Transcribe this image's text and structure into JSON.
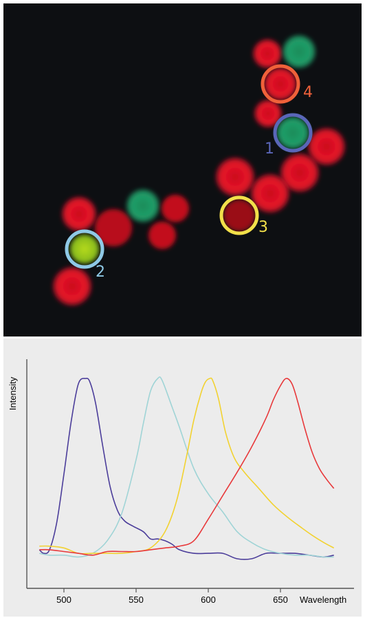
{
  "micrograph": {
    "background": "#0d0f12",
    "cell_labels": [
      "1",
      "2",
      "3",
      "4"
    ],
    "label_colors": {
      "1": "#5a66b8",
      "2": "#8fc9e6",
      "3": "#f2e04a",
      "4": "#f0613a"
    },
    "cell_colors": {
      "red": "#e8152a",
      "green": "#21a06a",
      "yellow_green": "#a8d020"
    }
  },
  "chart_data": {
    "type": "line",
    "xlabel": "Wavelength",
    "ylabel": "Intensity",
    "xlim": [
      480,
      690
    ],
    "ylim": [
      0,
      1.05
    ],
    "x_ticks": [
      "500",
      "550",
      "600",
      "650"
    ],
    "grid": false,
    "series": [
      {
        "color": "#4b3d9a",
        "x": [
          483,
          486,
          490,
          495,
          500,
          505,
          510,
          515,
          518,
          522,
          527,
          532,
          537,
          542,
          548,
          555,
          560,
          565,
          570,
          575,
          580,
          590,
          600,
          610,
          620,
          630,
          640,
          650,
          660,
          670,
          680,
          687
        ],
        "y": [
          0.05,
          0.03,
          0.05,
          0.2,
          0.47,
          0.76,
          0.97,
          1.0,
          0.98,
          0.86,
          0.62,
          0.4,
          0.27,
          0.21,
          0.18,
          0.15,
          0.11,
          0.11,
          0.1,
          0.08,
          0.05,
          0.03,
          0.03,
          0.03,
          0.0,
          0.0,
          0.03,
          0.03,
          0.03,
          0.02,
          0.01,
          0.02
        ]
      },
      {
        "color": "#9fd4d6",
        "x": [
          483,
          490,
          500,
          510,
          520,
          530,
          540,
          550,
          555,
          560,
          565,
          568,
          575,
          580,
          590,
          600,
          610,
          620,
          630,
          640,
          650,
          660,
          670,
          680,
          687
        ],
        "y": [
          0.03,
          0.02,
          0.02,
          0.01,
          0.03,
          0.1,
          0.25,
          0.55,
          0.75,
          0.93,
          1.0,
          0.99,
          0.84,
          0.73,
          0.5,
          0.36,
          0.26,
          0.15,
          0.09,
          0.05,
          0.03,
          0.02,
          0.02,
          0.01,
          0.01
        ]
      },
      {
        "color": "#f2d230",
        "x": [
          483,
          490,
          500,
          510,
          520,
          530,
          540,
          550,
          560,
          570,
          578,
          585,
          590,
          595,
          598,
          601,
          603,
          607,
          612,
          618,
          625,
          635,
          645,
          655,
          665,
          672,
          680,
          687
        ],
        "y": [
          0.07,
          0.07,
          0.06,
          0.03,
          0.03,
          0.03,
          0.03,
          0.04,
          0.06,
          0.15,
          0.32,
          0.57,
          0.77,
          0.92,
          0.98,
          1.0,
          0.99,
          0.89,
          0.7,
          0.56,
          0.48,
          0.39,
          0.3,
          0.23,
          0.17,
          0.13,
          0.09,
          0.06
        ]
      },
      {
        "color": "#e8383a",
        "x": [
          483,
          490,
          500,
          510,
          520,
          530,
          540,
          550,
          560,
          570,
          580,
          590,
          600,
          610,
          620,
          630,
          640,
          645,
          650,
          654,
          658,
          662,
          667,
          672,
          677,
          682,
          687
        ],
        "y": [
          0.05,
          0.05,
          0.04,
          0.03,
          0.02,
          0.04,
          0.04,
          0.04,
          0.05,
          0.06,
          0.07,
          0.1,
          0.22,
          0.35,
          0.48,
          0.62,
          0.78,
          0.88,
          0.96,
          1.0,
          0.97,
          0.87,
          0.72,
          0.59,
          0.5,
          0.44,
          0.39
        ]
      }
    ]
  }
}
